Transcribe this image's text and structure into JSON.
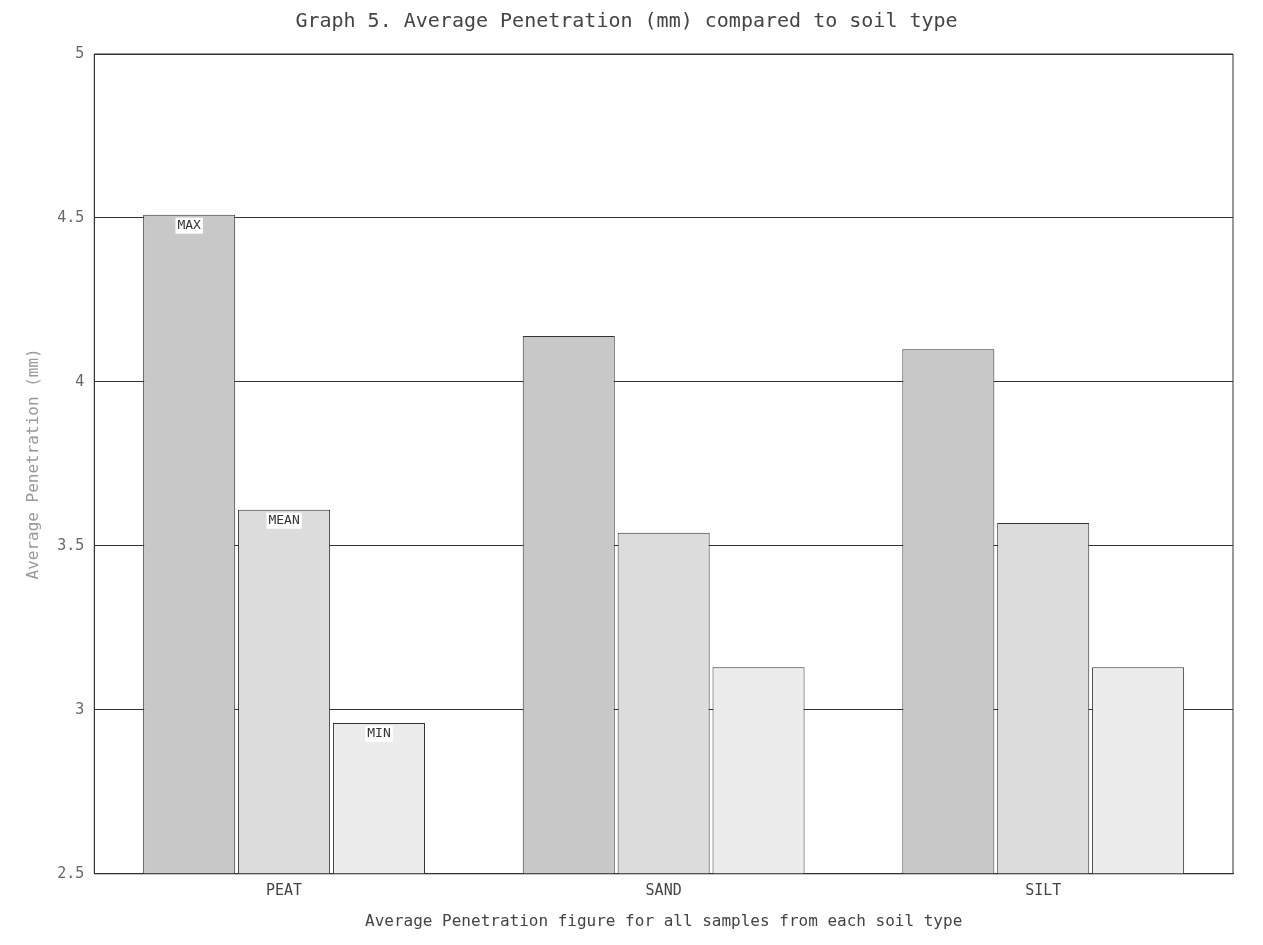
{
  "chart_data": {
    "type": "bar",
    "title": "Graph 5. Average Penetration (mm) compared to soil type",
    "xlabel": "Average Penetration figure for all samples from each soil type",
    "ylabel": "Average Penetration (mm)",
    "categories": [
      "PEAT",
      "SAND",
      "SILT"
    ],
    "series": [
      {
        "name": "MAX",
        "color": "#c8c8c8",
        "values": [
          4.51,
          4.14,
          4.1
        ]
      },
      {
        "name": "MEAN",
        "color": "#dcdcdc",
        "values": [
          3.61,
          3.54,
          3.57
        ]
      },
      {
        "name": "MIN",
        "color": "#ececec",
        "values": [
          2.96,
          3.13,
          3.13
        ]
      }
    ],
    "ylim": [
      2.5,
      5
    ],
    "yticks": [
      2.5,
      3,
      3.5,
      4,
      4.5,
      5
    ],
    "grid": "y",
    "legend": false
  }
}
